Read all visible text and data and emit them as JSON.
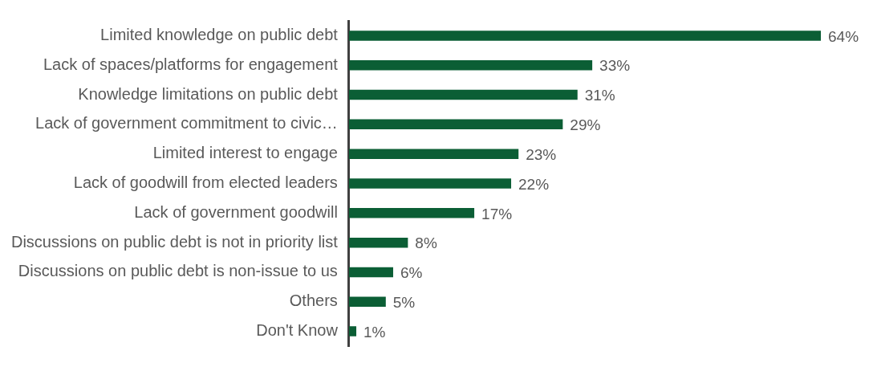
{
  "chart_data": {
    "type": "bar",
    "orientation": "horizontal",
    "categories": [
      "Limited knowledge on public debt",
      "Lack of spaces/platforms for engagement",
      "Knowledge limitations on public debt",
      "Lack of government commitment to civic…",
      "Limited interest to engage",
      "Lack of goodwill from elected leaders",
      "Lack of government goodwill",
      "Discussions on public debt is not in priority list",
      "Discussions on public debt is non-issue to us",
      "Others",
      "Don't Know"
    ],
    "values": [
      64,
      33,
      31,
      29,
      23,
      22,
      17,
      8,
      6,
      5,
      1
    ],
    "value_labels": [
      "64%",
      "33%",
      "31%",
      "29%",
      "23%",
      "22%",
      "17%",
      "8%",
      "6%",
      "5%",
      "1%"
    ],
    "color": "#0b5e35",
    "xlim": [
      0,
      64
    ],
    "tick_labels": "y"
  }
}
